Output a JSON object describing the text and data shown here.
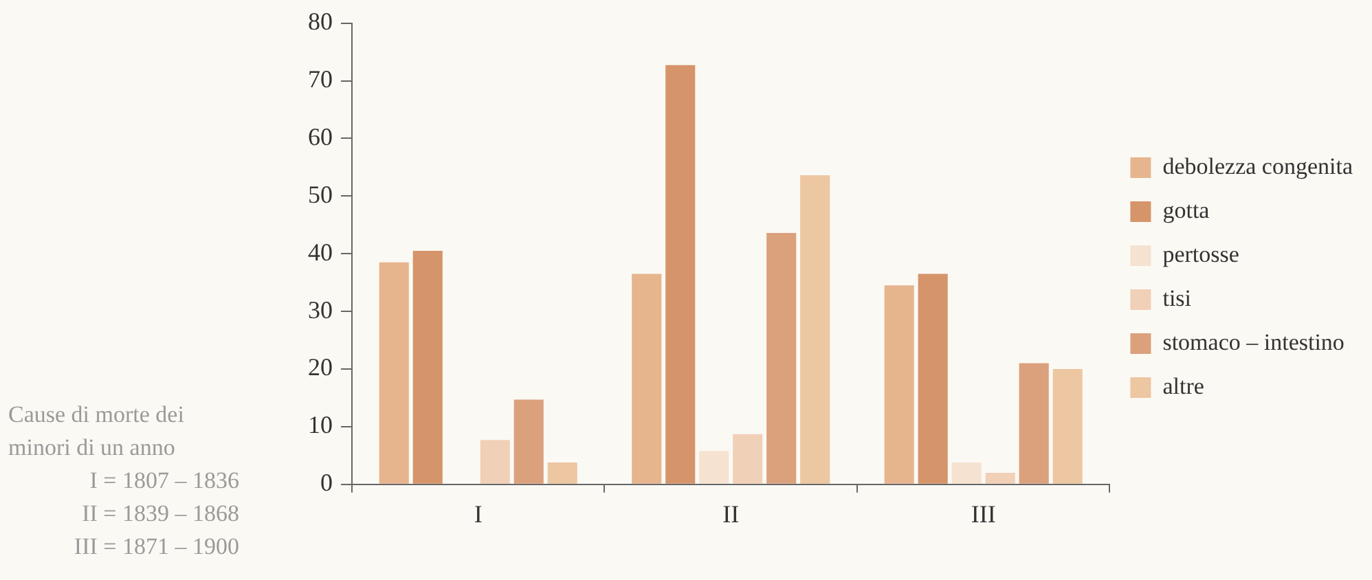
{
  "chart_data": {
    "type": "bar",
    "categories": [
      "I",
      "II",
      "III"
    ],
    "series": [
      {
        "name": "debolezza congenita",
        "color": "#e6b58e",
        "values": [
          38.5,
          36.5,
          34.5
        ]
      },
      {
        "name": "gotta",
        "color": "#d6946a",
        "values": [
          40.5,
          72.7,
          36.5
        ]
      },
      {
        "name": "pertosse",
        "color": "#f6e2d0",
        "values": [
          0,
          5.8,
          3.8
        ]
      },
      {
        "name": "tisi",
        "color": "#f1d0b8",
        "values": [
          7.7,
          8.7,
          2
        ]
      },
      {
        "name": "stomaco – intestino",
        "color": "#dba07c",
        "values": [
          14.7,
          43.6,
          21
        ]
      },
      {
        "name": "altre",
        "color": "#edc6a2",
        "values": [
          3.8,
          53.6,
          20
        ]
      }
    ],
    "ylim": [
      0,
      80
    ],
    "yticks": [
      0,
      10,
      20,
      30,
      40,
      50,
      60,
      70,
      80
    ],
    "grid": false,
    "legend": "right",
    "annotations": [
      "Cause di morte dei minori di un anno",
      "I = 1807 – 1836",
      "II = 1839 – 1868",
      "III = 1871 – 1900"
    ]
  }
}
